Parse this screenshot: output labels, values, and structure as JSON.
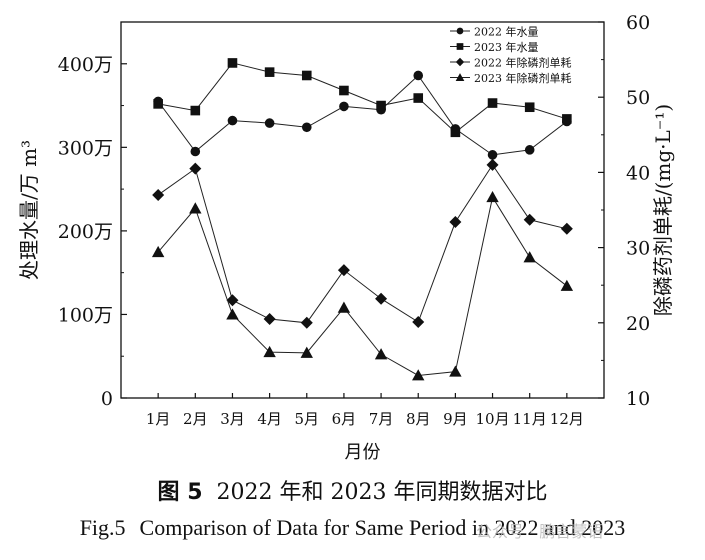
{
  "chart_data": {
    "type": "line",
    "categories": [
      "1月",
      "2月",
      "3月",
      "4月",
      "5月",
      "6月",
      "7月",
      "8月",
      "9月",
      "10月",
      "11月",
      "12月"
    ],
    "xlabel": "月份",
    "ylabel_left": "处理水量/万 m³",
    "ylabel_right": "除磷药剂单耗/(mg·L⁻¹)",
    "ylim_left": [
      0,
      450
    ],
    "yticks_left": [
      {
        "value": 0,
        "label": "0"
      },
      {
        "value": 100,
        "label": "100万"
      },
      {
        "value": 200,
        "label": "200万"
      },
      {
        "value": 300,
        "label": "300万"
      },
      {
        "value": 400,
        "label": "400万"
      }
    ],
    "ylim_right": [
      10,
      60
    ],
    "yticks_right": [
      10,
      20,
      30,
      40,
      50,
      60
    ],
    "grid": false,
    "legend_position": "top-right",
    "series": [
      {
        "name": "2022 年水量",
        "axis": "left",
        "marker": "circle",
        "values": [
          355,
          295,
          332,
          329,
          324,
          349,
          345,
          386,
          322,
          291,
          297,
          331
        ]
      },
      {
        "name": "2023 年水量",
        "axis": "left",
        "marker": "square",
        "values": [
          352,
          344,
          401,
          390,
          386,
          368,
          350,
          359,
          318,
          353,
          348,
          334
        ]
      },
      {
        "name": "2022 年除磷剂单耗",
        "axis": "right",
        "marker": "diamond",
        "values": [
          37.0,
          40.5,
          23.0,
          20.5,
          20.0,
          27.0,
          23.2,
          20.1,
          33.4,
          41.0,
          33.7,
          32.5
        ]
      },
      {
        "name": "2023 年除磷剂单耗",
        "axis": "right",
        "marker": "triangle",
        "values": [
          29.4,
          35.2,
          21.1,
          16.1,
          16.0,
          22.0,
          15.8,
          13.0,
          13.5,
          36.7,
          28.7,
          24.9
        ]
      }
    ]
  },
  "caption": {
    "cn_fig": "图 5",
    "cn_title": "2022 年和 2023 年同期数据对比",
    "en_fig": "Fig.5",
    "en_title": "Comparison of Data for Same Period in 2022 and 2023"
  },
  "watermark": "公众号 · 鹏言蒙语"
}
